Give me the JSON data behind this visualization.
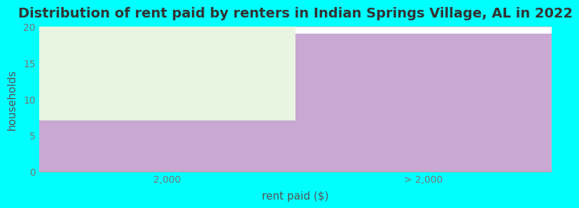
{
  "title": "Distribution of rent paid by renters in Indian Springs Village, AL in 2022",
  "categories": [
    "2,000",
    "> 2,000"
  ],
  "values_purple": [
    7,
    19
  ],
  "values_green": [
    13,
    0
  ],
  "bar_color_purple": "#C9A8D4",
  "bar_color_green": "#E8F5E0",
  "xlabel": "rent paid ($)",
  "ylabel": "households",
  "ylim": [
    0,
    20
  ],
  "yticks": [
    0,
    5,
    10,
    15,
    20
  ],
  "background_color": "#00FFFF",
  "plot_bg_color": "#FFFFFF",
  "title_fontsize": 14,
  "axis_label_fontsize": 11
}
